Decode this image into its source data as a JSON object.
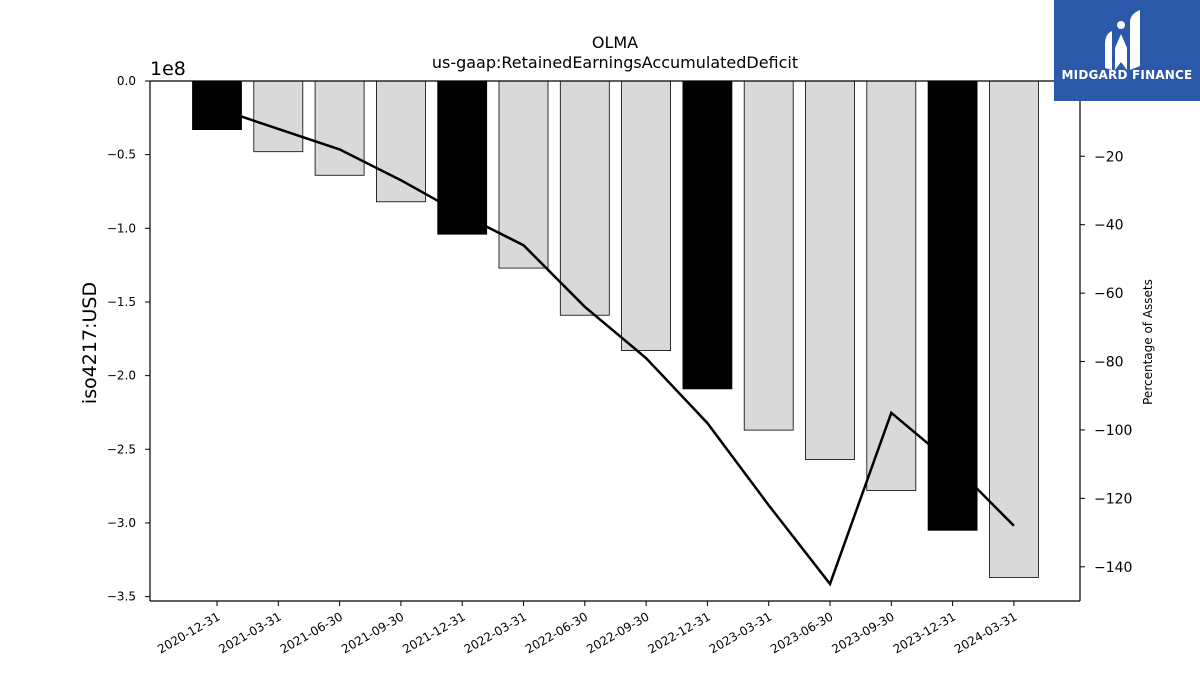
{
  "chart_data": {
    "type": "bar",
    "title": "OLMA",
    "subtitle": "us-gaap:RetainedEarningsAccumulatedDeficit",
    "ylabel": "iso4217:USD",
    "y2label": "Percentage of Assets",
    "y_offset_label": "1e8",
    "categories": [
      "2020-12-31",
      "2021-03-31",
      "2021-06-30",
      "2021-09-30",
      "2021-12-31",
      "2022-03-31",
      "2022-06-30",
      "2022-09-30",
      "2022-12-31",
      "2023-03-31",
      "2023-06-30",
      "2023-09-30",
      "2023-12-31",
      "2024-03-31"
    ],
    "values": [
      -33000000,
      -48000000,
      -64000000,
      -82000000,
      -104000000,
      -127000000,
      -159000000,
      -183000000,
      -209000000,
      -237000000,
      -257000000,
      -278000000,
      -305000000,
      -337000000
    ],
    "bar_colors": [
      "#000000",
      "#d9d9d9",
      "#d9d9d9",
      "#d9d9d9",
      "#000000",
      "#d9d9d9",
      "#d9d9d9",
      "#d9d9d9",
      "#000000",
      "#d9d9d9",
      "#d9d9d9",
      "#d9d9d9",
      "#000000",
      "#d9d9d9"
    ],
    "line_series": {
      "name": "Percentage of Assets",
      "values": [
        -6,
        -12,
        -18,
        -27,
        -37,
        -46,
        -64,
        -79,
        -98,
        -122,
        -145,
        -95,
        -110,
        -128
      ]
    },
    "ylim": [
      -353000000,
      0
    ],
    "y2lim": [
      -150,
      2
    ],
    "yticks": [
      0.0,
      -0.5,
      -1.0,
      -1.5,
      -2.0,
      -2.5,
      -3.0,
      -3.5
    ],
    "yticklabels": [
      "0.0",
      "−0.5",
      "−1.0",
      "−1.5",
      "−2.0",
      "−2.5",
      "−3.0",
      "−3.5"
    ],
    "y2ticks": [
      -20,
      -40,
      -60,
      -80,
      -100,
      -120,
      -140
    ],
    "y2ticklabels": [
      "−20",
      "−40",
      "−60",
      "−80",
      "−100",
      "−120",
      "−140"
    ],
    "grid": false,
    "legend": "none"
  },
  "logo": {
    "text": "MIDGARD FINANCE",
    "bg_color": "#2b58a8"
  }
}
